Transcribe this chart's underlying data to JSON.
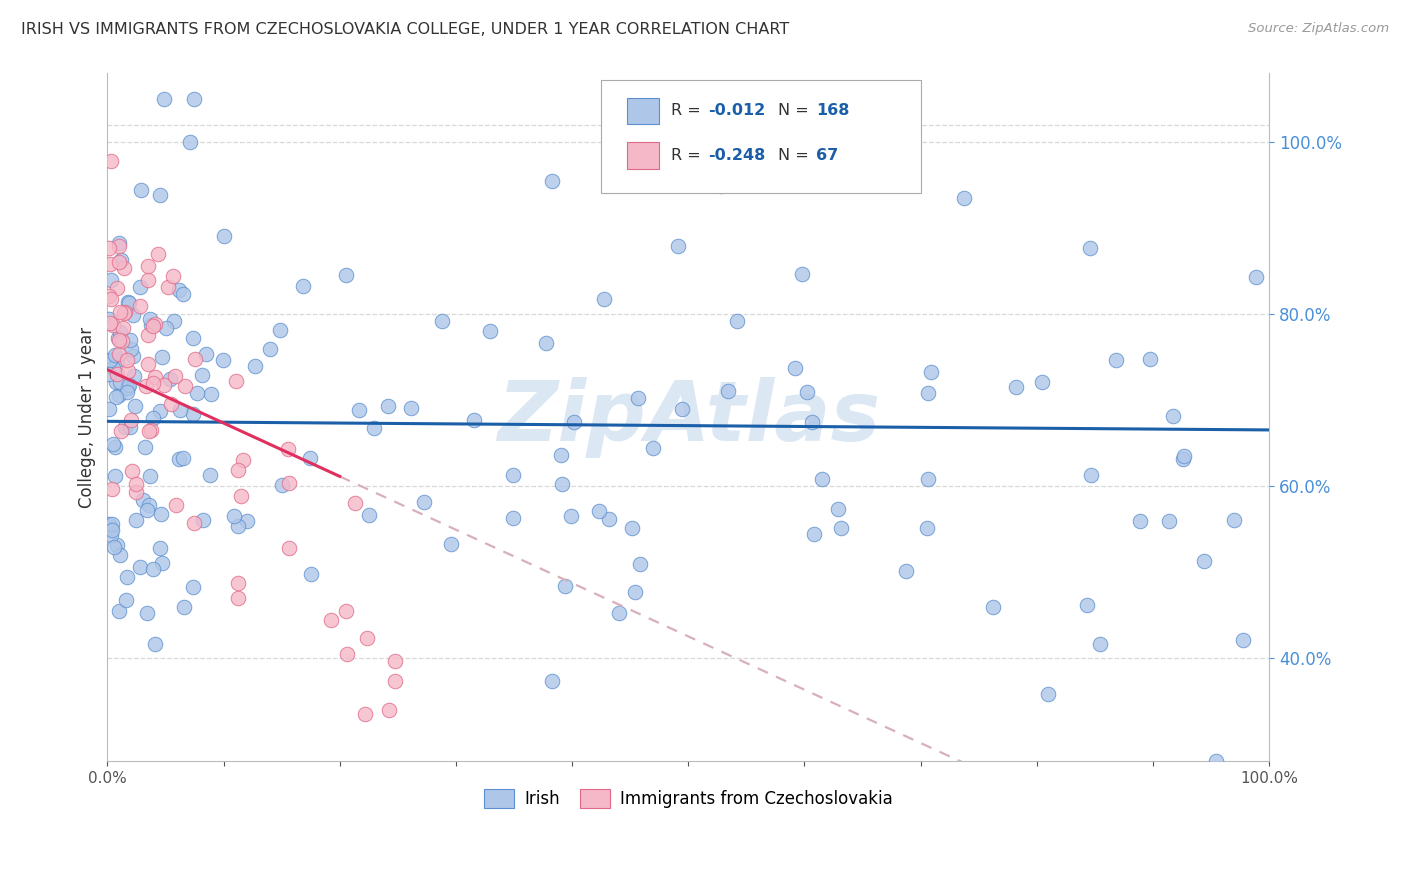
{
  "title": "IRISH VS IMMIGRANTS FROM CZECHOSLOVAKIA COLLEGE, UNDER 1 YEAR CORRELATION CHART",
  "source": "Source: ZipAtlas.com",
  "ylabel": "College, Under 1 year",
  "legend_label1": "Irish",
  "legend_label2": "Immigrants from Czechoslovakia",
  "r1": -0.012,
  "n1": 168,
  "r2": -0.248,
  "n2": 67,
  "blue_fill": "#aec6e8",
  "blue_edge": "#5b8fcf",
  "pink_fill": "#f5b8c8",
  "pink_edge": "#e06888",
  "trend_blue": "#1a5fa8",
  "trend_pink_solid": "#e03060",
  "trend_pink_dash": "#d8b0bc",
  "background": "#ffffff",
  "grid_color": "#d8d8d8",
  "title_color": "#333333",
  "right_axis_color": "#4a90d9",
  "watermark": "ZipAtlas",
  "watermark_color": "#b8d0e8",
  "seed": 42
}
